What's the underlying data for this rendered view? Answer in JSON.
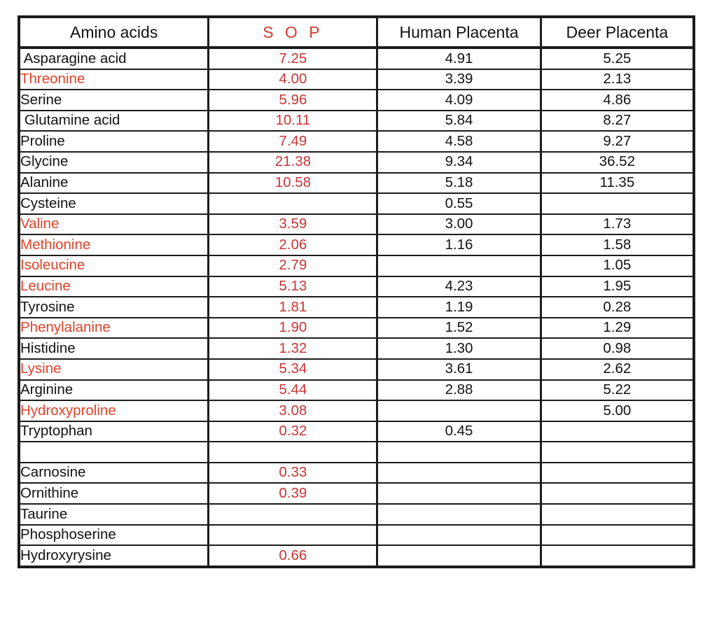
{
  "colors": {
    "header_red": "#d63a2e",
    "name_red": "#e0432a",
    "value_red": "#cd3434",
    "text": "#121212",
    "border": "#1c1c1c"
  },
  "chart_data": {
    "type": "table",
    "title": "",
    "headers": [
      {
        "label": "Amino acids",
        "color": "black"
      },
      {
        "label": "S O P",
        "color": "red"
      },
      {
        "label": "Human Placenta",
        "color": "black"
      },
      {
        "label": "Deer Placenta",
        "color": "black"
      }
    ],
    "rows": [
      {
        "name": " Asparagine acid",
        "name_red": false,
        "sop": "7.25",
        "human": "4.91",
        "deer": "5.25"
      },
      {
        "name": "Threonine",
        "name_red": true,
        "sop": "4.00",
        "human": "3.39",
        "deer": "2.13"
      },
      {
        "name": "Serine",
        "name_red": false,
        "sop": "5.96",
        "human": "4.09",
        "deer": "4.86"
      },
      {
        "name": " Glutamine acid",
        "name_red": false,
        "sop": "10.11",
        "human": "5.84",
        "deer": "8.27"
      },
      {
        "name": "Proline",
        "name_red": false,
        "sop": "7.49",
        "human": "4.58",
        "deer": "9.27"
      },
      {
        "name": "Glycine",
        "name_red": false,
        "sop": "21.38",
        "human": "9.34",
        "deer": "36.52"
      },
      {
        "name": "Alanine",
        "name_red": false,
        "sop": "10.58",
        "human": "5.18",
        "deer": "11.35"
      },
      {
        "name": "Cysteine",
        "name_red": false,
        "sop": "",
        "human": "0.55",
        "deer": ""
      },
      {
        "name": "Valine",
        "name_red": true,
        "sop": "3.59",
        "human": "3.00",
        "deer": "1.73"
      },
      {
        "name": "Methionine",
        "name_red": true,
        "sop": "2.06",
        "human": "1.16",
        "deer": "1.58"
      },
      {
        "name": "Isoleucine",
        "name_red": true,
        "sop": "2.79",
        "human": "",
        "deer": "1.05"
      },
      {
        "name": "Leucine",
        "name_red": true,
        "sop": "5.13",
        "human": "4.23",
        "deer": "1.95"
      },
      {
        "name": "Tyrosine",
        "name_red": false,
        "sop": "1.81",
        "human": "1.19",
        "deer": "0.28"
      },
      {
        "name": "Phenylalanine",
        "name_red": true,
        "sop": "1.90",
        "human": "1.52",
        "deer": "1.29"
      },
      {
        "name": "Histidine",
        "name_red": false,
        "sop": "1.32",
        "human": "1.30",
        "deer": "0.98"
      },
      {
        "name": "Lysine",
        "name_red": true,
        "sop": "5.34",
        "human": "3.61",
        "deer": "2.62"
      },
      {
        "name": "Arginine",
        "name_red": false,
        "sop": "5.44",
        "human": "2.88",
        "deer": "5.22"
      },
      {
        "name": "Hydroxyproline",
        "name_red": true,
        "sop": "3.08",
        "human": "",
        "deer": "5.00"
      },
      {
        "name": "Tryptophan",
        "name_red": false,
        "sop": "0.32",
        "human": "0.45",
        "deer": ""
      },
      {
        "name": "",
        "name_red": false,
        "sop": "",
        "human": "",
        "deer": ""
      },
      {
        "name": "Carnosine",
        "name_red": false,
        "sop": "0.33",
        "human": "",
        "deer": ""
      },
      {
        "name": "Ornithine",
        "name_red": false,
        "sop": "0.39",
        "human": "",
        "deer": ""
      },
      {
        "name": "Taurine",
        "name_red": false,
        "sop": "",
        "human": "",
        "deer": ""
      },
      {
        "name": "Phosphoserine",
        "name_red": false,
        "sop": "",
        "human": "",
        "deer": ""
      },
      {
        "name": "Hydroxyrysine",
        "name_red": false,
        "sop": "0.66",
        "human": "",
        "deer": ""
      }
    ]
  }
}
